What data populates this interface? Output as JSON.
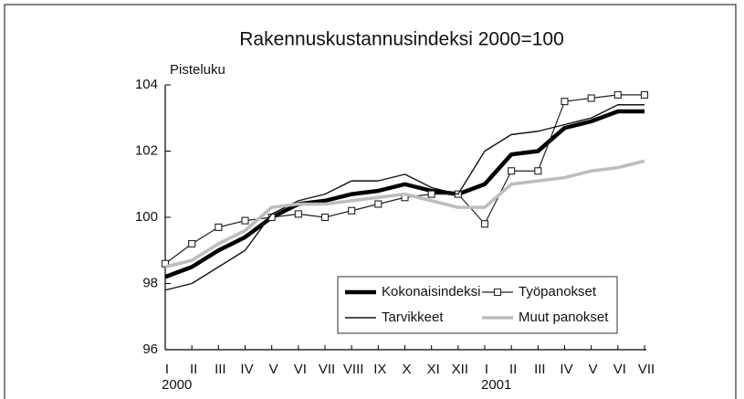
{
  "chart_data": {
    "type": "line",
    "title": "Rakennuskustannusindeksi 2000=100",
    "y_label": "Pisteluku",
    "categories": [
      "I",
      "II",
      "III",
      "IV",
      "V",
      "VI",
      "VII",
      "VIII",
      "IX",
      "X",
      "XI",
      "XII",
      "I",
      "II",
      "III",
      "IV",
      "V",
      "VI",
      "VII"
    ],
    "years": [
      "2000",
      "2001"
    ],
    "ylim": [
      96,
      104
    ],
    "yticks": [
      96,
      98,
      100,
      102,
      104
    ],
    "grid": false,
    "legend": "lower right",
    "series": [
      {
        "name": "Kokonaisindeksi",
        "color": "#000000",
        "line_width": 4.5,
        "marker": "none",
        "values": [
          98.2,
          98.5,
          99.0,
          99.4,
          100.0,
          100.4,
          100.5,
          100.7,
          100.8,
          101.0,
          100.8,
          100.7,
          101.0,
          101.9,
          102.0,
          102.7,
          102.9,
          103.2,
          103.2
        ]
      },
      {
        "name": "Työpanokset",
        "color": "#222222",
        "line_width": 1.2,
        "marker": "square",
        "values": [
          98.6,
          99.2,
          99.7,
          99.9,
          100.0,
          100.1,
          100.0,
          100.2,
          100.4,
          100.6,
          100.7,
          100.7,
          99.8,
          101.4,
          101.4,
          103.5,
          103.6,
          103.7,
          103.7
        ]
      },
      {
        "name": "Tarvikkeet",
        "color": "#111111",
        "line_width": 1.4,
        "marker": "none",
        "values": [
          97.8,
          98.0,
          98.5,
          99.0,
          100.1,
          100.5,
          100.7,
          101.1,
          101.1,
          101.3,
          100.9,
          100.7,
          102.0,
          102.5,
          102.6,
          102.8,
          103.0,
          103.4,
          103.4
        ]
      },
      {
        "name": "Muut panokset",
        "color": "#bdbdbd",
        "line_width": 3.5,
        "marker": "none",
        "values": [
          98.5,
          98.7,
          99.2,
          99.6,
          100.3,
          100.4,
          100.4,
          100.5,
          100.6,
          100.7,
          100.5,
          100.3,
          100.3,
          101.0,
          101.1,
          101.2,
          101.4,
          101.5,
          101.7
        ]
      }
    ]
  }
}
